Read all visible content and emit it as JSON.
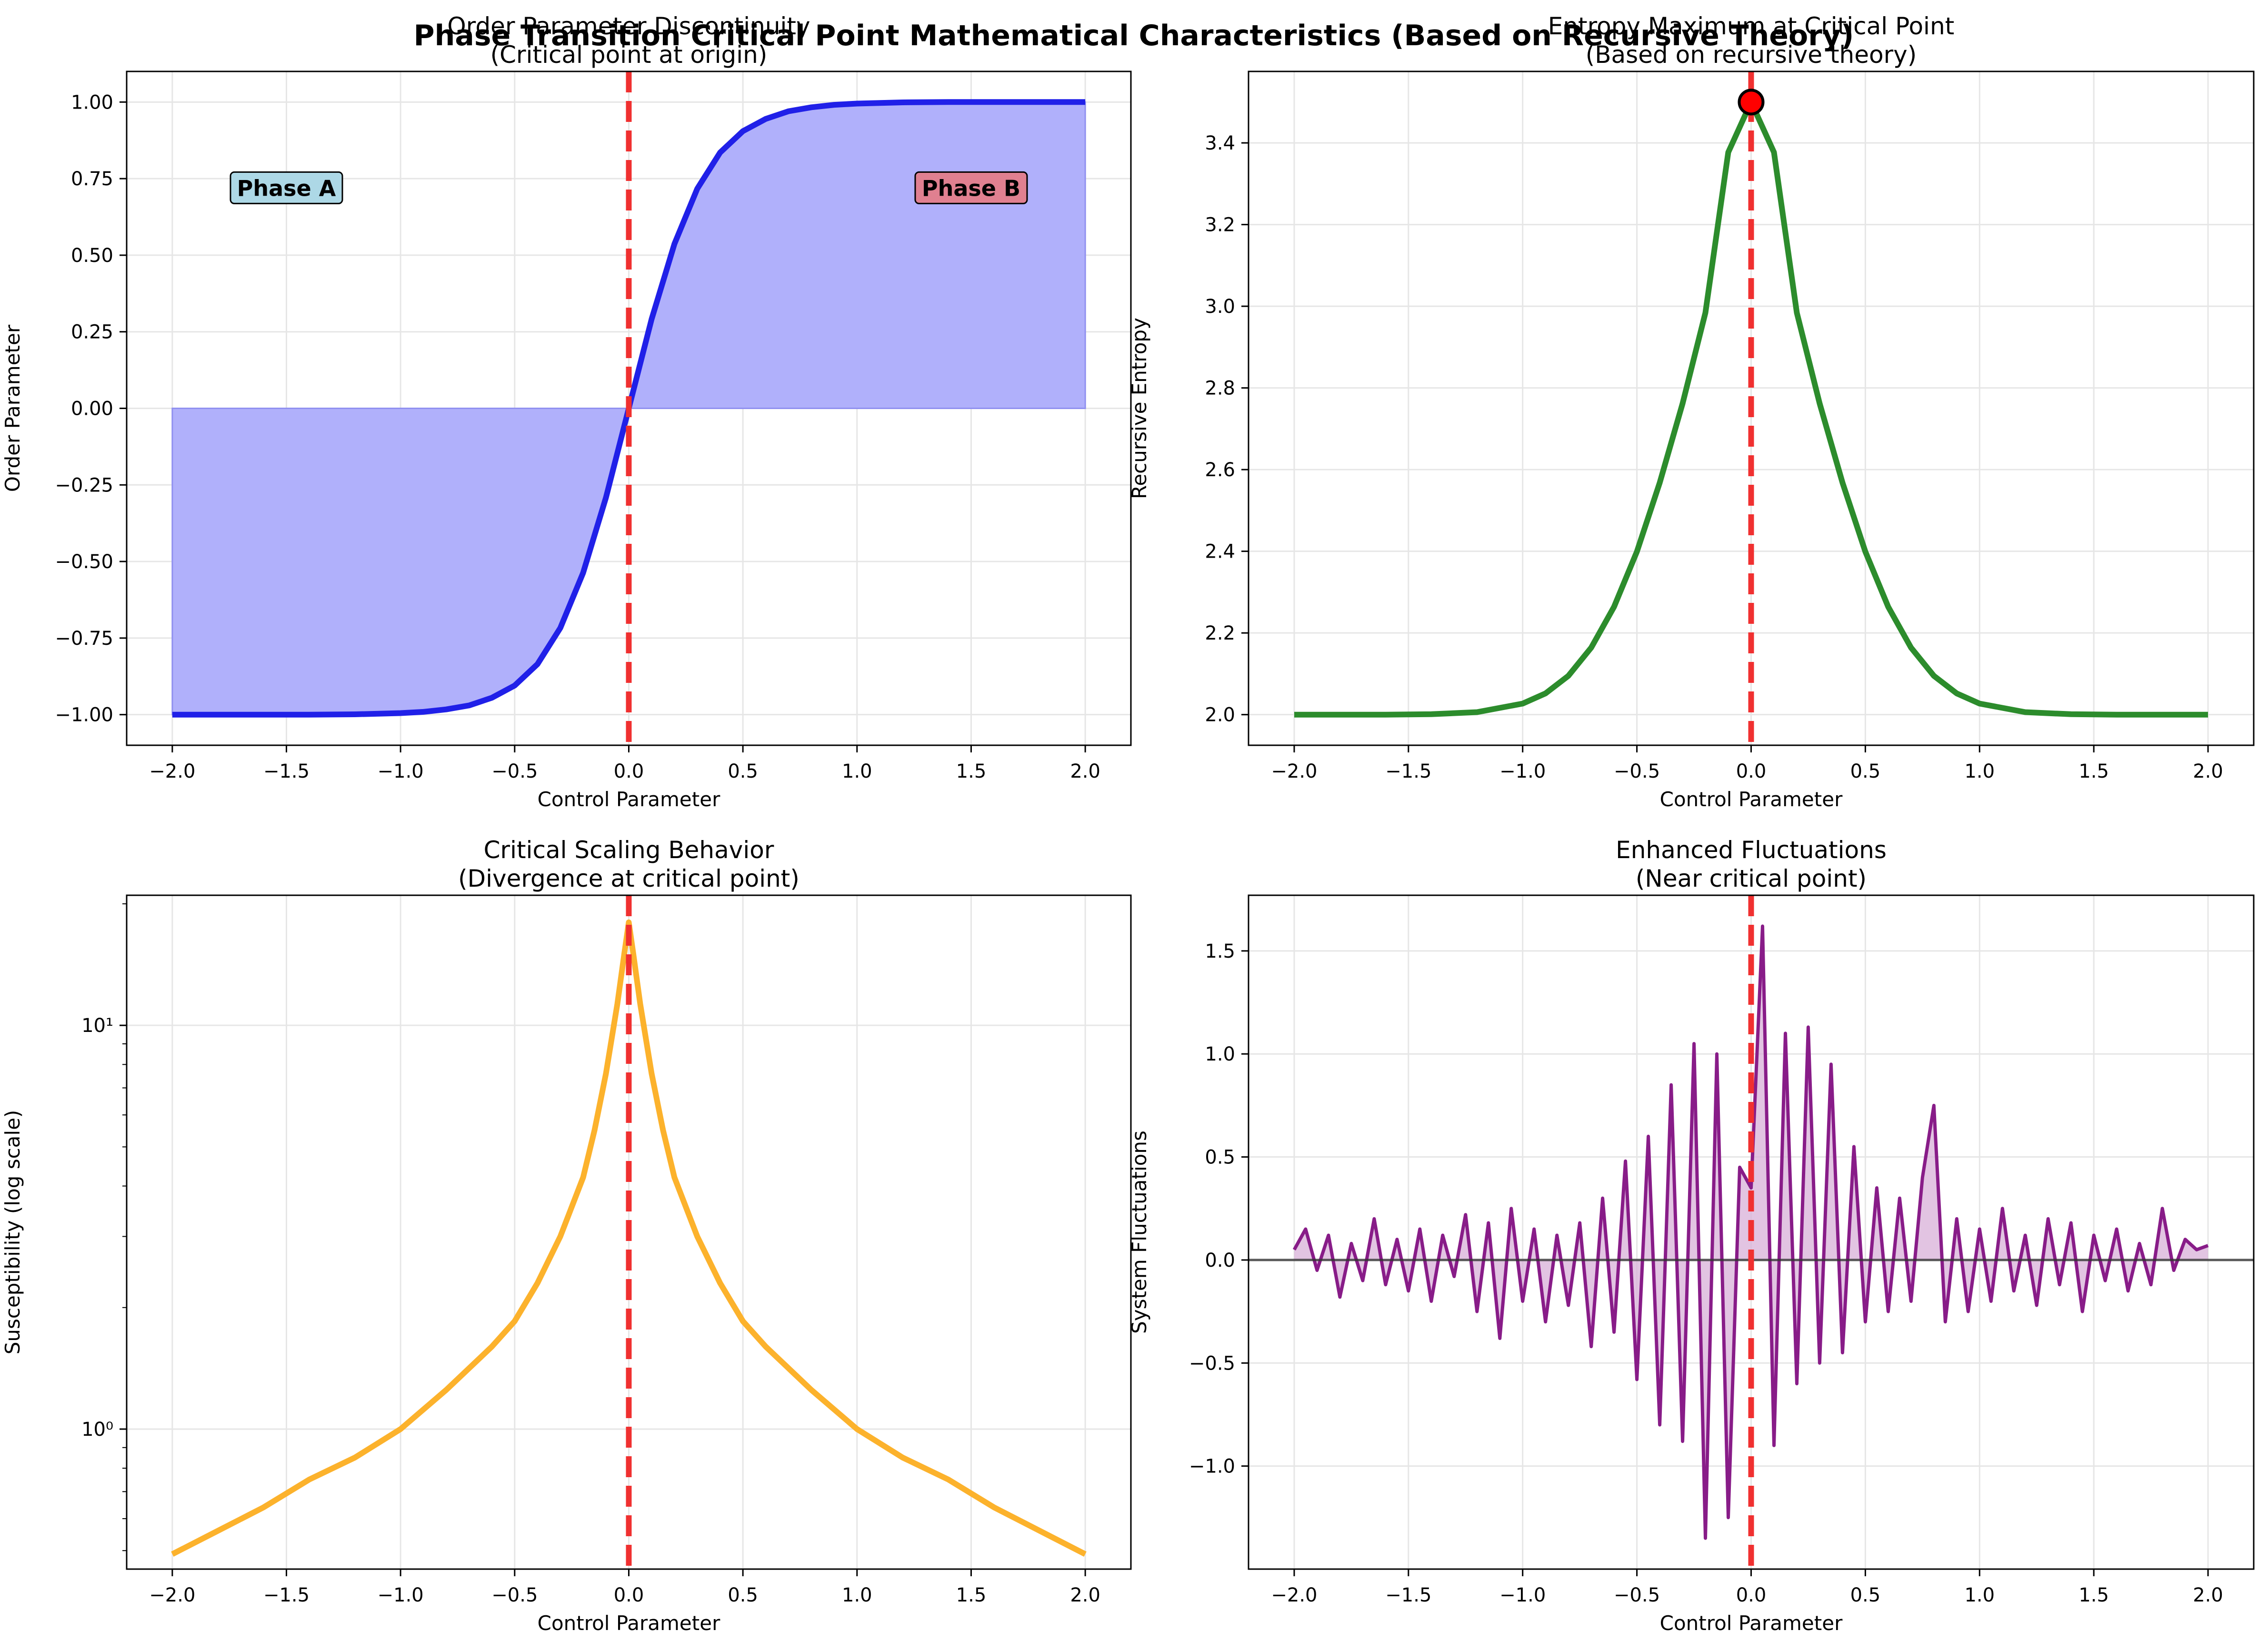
{
  "figure": {
    "suptitle": "Phase Transition Critical Point Mathematical Characteristics (Based on Recursive Theory)"
  },
  "colors": {
    "order": "#2020e8",
    "order_fill": "#b0b0fb",
    "entropy": "#2c8c2c",
    "scaling": "#fcb22c",
    "fluct": "#881c88",
    "fluct_fill": "#d8b0d8",
    "critical_line": "#f03030",
    "phase_a_box": "#add8e6",
    "phase_b_box": "#e08090",
    "grid": "#e6e6e6"
  },
  "chart_data": [
    {
      "id": "order",
      "type": "area",
      "title": "Order Parameter Discontinuity",
      "subtitle": "(Critical point at origin)",
      "xlabel": "Control Parameter",
      "ylabel": "Order Parameter",
      "xlim": [
        -2.2,
        2.2
      ],
      "ylim": [
        -1.1,
        1.1
      ],
      "xticks": [
        -2.0,
        -1.5,
        -1.0,
        -0.5,
        0.0,
        0.5,
        1.0,
        1.5,
        2.0
      ],
      "xtick_labels": [
        "−2.0",
        "−1.5",
        "−1.0",
        "−0.5",
        "0.0",
        "0.5",
        "1.0",
        "1.5",
        "2.0"
      ],
      "yticks": [
        -1.0,
        -0.75,
        -0.5,
        -0.25,
        0.0,
        0.25,
        0.5,
        0.75,
        1.0
      ],
      "ytick_labels": [
        "−1.00",
        "−0.75",
        "−0.50",
        "−0.25",
        "0.00",
        "0.25",
        "0.50",
        "0.75",
        "1.00"
      ],
      "grid": true,
      "critical_x": 0.0,
      "series": [
        {
          "x": [
            -2.0,
            -1.8,
            -1.6,
            -1.4,
            -1.2,
            -1.0,
            -0.9,
            -0.8,
            -0.7,
            -0.6,
            -0.5,
            -0.4,
            -0.3,
            -0.2,
            -0.1,
            0.0,
            0.1,
            0.2,
            0.3,
            0.4,
            0.5,
            0.6,
            0.7,
            0.8,
            0.9,
            1.0,
            1.2,
            1.4,
            1.6,
            1.8,
            2.0
          ],
          "y": [
            -1.0,
            -1.0,
            -1.0,
            -1.0,
            -0.999,
            -0.995,
            -0.991,
            -0.983,
            -0.97,
            -0.945,
            -0.905,
            -0.835,
            -0.717,
            -0.537,
            -0.291,
            0.0,
            0.291,
            0.537,
            0.717,
            0.835,
            0.905,
            0.945,
            0.97,
            0.983,
            0.991,
            0.995,
            0.999,
            1.0,
            1.0,
            1.0,
            1.0
          ]
        }
      ],
      "annotations": [
        {
          "text": "Phase A",
          "x": -1.5,
          "y": 0.72
        },
        {
          "text": "Phase B",
          "x": 1.5,
          "y": 0.72
        }
      ]
    },
    {
      "id": "entropy",
      "type": "line",
      "title": "Entropy Maximum at Critical Point",
      "subtitle": "(Based on recursive theory)",
      "xlabel": "Control Parameter",
      "ylabel": "Recursive Entropy",
      "xlim": [
        -2.2,
        2.2
      ],
      "ylim": [
        1.925,
        3.575
      ],
      "xticks": [
        -2.0,
        -1.5,
        -1.0,
        -0.5,
        0.0,
        0.5,
        1.0,
        1.5,
        2.0
      ],
      "xtick_labels": [
        "−2.0",
        "−1.5",
        "−1.0",
        "−0.5",
        "0.0",
        "0.5",
        "1.0",
        "1.5",
        "2.0"
      ],
      "yticks": [
        2.0,
        2.2,
        2.4,
        2.6,
        2.8,
        3.0,
        3.2,
        3.4
      ],
      "ytick_labels": [
        "2.0",
        "2.2",
        "2.4",
        "2.6",
        "2.8",
        "3.0",
        "3.2",
        "3.4"
      ],
      "grid": true,
      "critical_x": 0.0,
      "series": [
        {
          "x": [
            -2.0,
            -1.6,
            -1.4,
            -1.2,
            -1.0,
            -0.9,
            -0.8,
            -0.7,
            -0.6,
            -0.5,
            -0.4,
            -0.3,
            -0.2,
            -0.1,
            0.0,
            0.1,
            0.2,
            0.3,
            0.4,
            0.5,
            0.6,
            0.7,
            0.8,
            0.9,
            1.0,
            1.2,
            1.4,
            1.6,
            2.0
          ],
          "y": [
            2.0,
            2.0,
            2.001,
            2.006,
            2.027,
            2.052,
            2.095,
            2.164,
            2.264,
            2.399,
            2.568,
            2.762,
            2.984,
            3.377,
            3.5,
            3.377,
            2.984,
            2.762,
            2.568,
            2.399,
            2.264,
            2.164,
            2.095,
            2.052,
            2.027,
            2.006,
            2.001,
            2.0,
            2.0
          ]
        }
      ],
      "marker": {
        "x": 0.0,
        "y": 3.5
      }
    },
    {
      "id": "scaling",
      "type": "line",
      "title": "Critical Scaling Behavior",
      "subtitle": "(Divergence at critical point)",
      "xlabel": "Control Parameter",
      "ylabel": "Susceptibility (log scale)",
      "yscale": "log",
      "xlim": [
        -2.2,
        2.2
      ],
      "ylim": [
        0.45,
        21
      ],
      "xticks": [
        -2.0,
        -1.5,
        -1.0,
        -0.5,
        0.0,
        0.5,
        1.0,
        1.5,
        2.0
      ],
      "xtick_labels": [
        "−2.0",
        "−1.5",
        "−1.0",
        "−0.5",
        "0.0",
        "0.5",
        "1.0",
        "1.5",
        "2.0"
      ],
      "yticks": [
        1,
        10
      ],
      "ytick_labels": [
        "10⁰",
        "10¹"
      ],
      "grid": true,
      "critical_x": 0.0,
      "series": [
        {
          "x": [
            -2.0,
            -1.8,
            -1.6,
            -1.4,
            -1.2,
            -1.0,
            -0.8,
            -0.6,
            -0.5,
            -0.4,
            -0.3,
            -0.2,
            -0.15,
            -0.1,
            -0.05,
            -0.02,
            0.0,
            0.02,
            0.05,
            0.1,
            0.15,
            0.2,
            0.3,
            0.4,
            0.5,
            0.6,
            0.8,
            1.0,
            1.2,
            1.4,
            1.6,
            1.8,
            2.0
          ],
          "y": [
            0.49,
            0.56,
            0.64,
            0.75,
            0.85,
            1.0,
            1.25,
            1.6,
            1.85,
            2.3,
            3.0,
            4.2,
            5.5,
            7.6,
            11.3,
            15.0,
            18.0,
            15.0,
            11.3,
            7.6,
            5.5,
            4.2,
            3.0,
            2.3,
            1.85,
            1.6,
            1.25,
            1.0,
            0.85,
            0.75,
            0.64,
            0.56,
            0.49
          ]
        }
      ]
    },
    {
      "id": "fluct",
      "type": "line",
      "title": "Enhanced Fluctuations",
      "subtitle": "(Near critical point)",
      "xlabel": "Control Parameter",
      "ylabel": "System Fluctuations",
      "xlim": [
        -2.2,
        2.2
      ],
      "ylim": [
        -1.5,
        1.77
      ],
      "xticks": [
        -2.0,
        -1.5,
        -1.0,
        -0.5,
        0.0,
        0.5,
        1.0,
        1.5,
        2.0
      ],
      "xtick_labels": [
        "−2.0",
        "−1.5",
        "−1.0",
        "−0.5",
        "0.0",
        "0.5",
        "1.0",
        "1.5",
        "2.0"
      ],
      "yticks": [
        -1.0,
        -0.5,
        0.0,
        0.5,
        1.0,
        1.5
      ],
      "ytick_labels": [
        "−1.0",
        "−0.5",
        "0.0",
        "0.5",
        "1.0",
        "1.5"
      ],
      "grid": true,
      "critical_x": 0.0,
      "baseline": 0.0,
      "series": [
        {
          "x": [
            -2.0,
            -1.95,
            -1.9,
            -1.85,
            -1.8,
            -1.75,
            -1.7,
            -1.65,
            -1.6,
            -1.55,
            -1.5,
            -1.45,
            -1.4,
            -1.35,
            -1.3,
            -1.25,
            -1.2,
            -1.15,
            -1.1,
            -1.05,
            -1.0,
            -0.95,
            -0.9,
            -0.85,
            -0.8,
            -0.75,
            -0.7,
            -0.65,
            -0.6,
            -0.55,
            -0.5,
            -0.45,
            -0.4,
            -0.35,
            -0.3,
            -0.25,
            -0.2,
            -0.15,
            -0.1,
            -0.05,
            0.0,
            0.05,
            0.1,
            0.15,
            0.2,
            0.25,
            0.3,
            0.35,
            0.4,
            0.45,
            0.5,
            0.55,
            0.6,
            0.65,
            0.7,
            0.75,
            0.8,
            0.85,
            0.9,
            0.95,
            1.0,
            1.05,
            1.1,
            1.15,
            1.2,
            1.25,
            1.3,
            1.35,
            1.4,
            1.45,
            1.5,
            1.55,
            1.6,
            1.65,
            1.7,
            1.75,
            1.8,
            1.85,
            1.9,
            1.95,
            2.0
          ],
          "y": [
            0.05,
            0.15,
            -0.05,
            0.12,
            -0.18,
            0.08,
            -0.1,
            0.2,
            -0.12,
            0.1,
            -0.15,
            0.15,
            -0.2,
            0.12,
            -0.08,
            0.22,
            -0.25,
            0.18,
            -0.38,
            0.25,
            -0.2,
            0.15,
            -0.3,
            0.12,
            -0.22,
            0.18,
            -0.42,
            0.3,
            -0.35,
            0.48,
            -0.58,
            0.6,
            -0.8,
            0.85,
            -0.88,
            1.05,
            -1.35,
            1.0,
            -1.25,
            0.45,
            0.35,
            1.62,
            -0.9,
            1.1,
            -0.6,
            1.13,
            -0.5,
            0.95,
            -0.45,
            0.55,
            -0.3,
            0.35,
            -0.25,
            0.3,
            -0.2,
            0.4,
            0.75,
            -0.3,
            0.2,
            -0.25,
            0.15,
            -0.2,
            0.25,
            -0.15,
            0.12,
            -0.22,
            0.2,
            -0.12,
            0.18,
            -0.25,
            0.12,
            -0.1,
            0.15,
            -0.15,
            0.08,
            -0.12,
            0.25,
            -0.05,
            0.1,
            0.05,
            0.07
          ]
        }
      ]
    }
  ]
}
